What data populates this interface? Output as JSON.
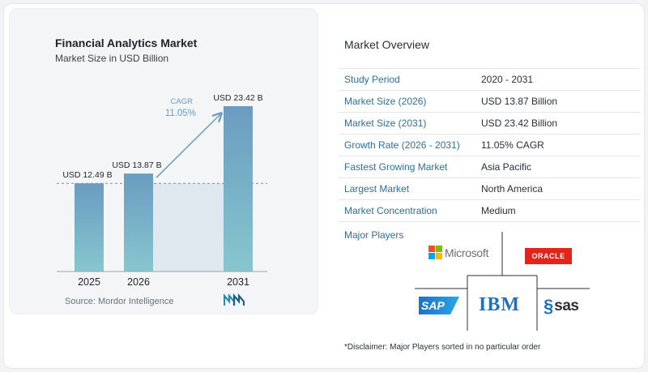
{
  "chart_data": {
    "type": "bar",
    "title": "Financial Analytics Market",
    "subtitle": "Market Size in USD Billion",
    "categories": [
      "2025",
      "2026",
      "2031"
    ],
    "values": [
      12.49,
      13.87,
      23.42
    ],
    "value_labels": [
      "USD 12.49 B",
      "USD 13.87 B",
      "USD 23.42 B"
    ],
    "cagr_label": "CAGR",
    "cagr_value": "11.05%",
    "ylim": [
      0,
      23.42
    ],
    "bar_color_top": "#6a9cc0",
    "bar_color_bottom": "#87c6cf",
    "grid": false,
    "reference_line_value": 12.49
  },
  "source": "Source:  Mordor Intelligence",
  "logo_icon": "mordor-intelligence-logo-icon",
  "overview": {
    "title": "Market Overview",
    "rows": [
      {
        "label": "Study Period",
        "value": "2020 - 2031"
      },
      {
        "label": "Market Size (2026)",
        "value": "USD 13.87 Billion"
      },
      {
        "label": "Market Size (2031)",
        "value": "USD 23.42 Billion"
      },
      {
        "label": "Growth Rate (2026 - 2031)",
        "value": "11.05% CAGR"
      },
      {
        "label": "Fastest Growing Market",
        "value": "Asia Pacific"
      },
      {
        "label": "Largest Market",
        "value": "North America"
      },
      {
        "label": "Market Concentration",
        "value": "Medium"
      }
    ]
  },
  "major_players": {
    "title": "Major Players",
    "logos": {
      "microsoft": "Microsoft",
      "oracle": "ORACLE",
      "sap": "SAP",
      "ibm": "IBM",
      "sas": "sas"
    },
    "microsoft_colors": [
      "#f25022",
      "#7fba00",
      "#00a4ef",
      "#ffb900"
    ]
  },
  "disclaimer": "*Disclaimer: Major Players sorted in no particular order"
}
